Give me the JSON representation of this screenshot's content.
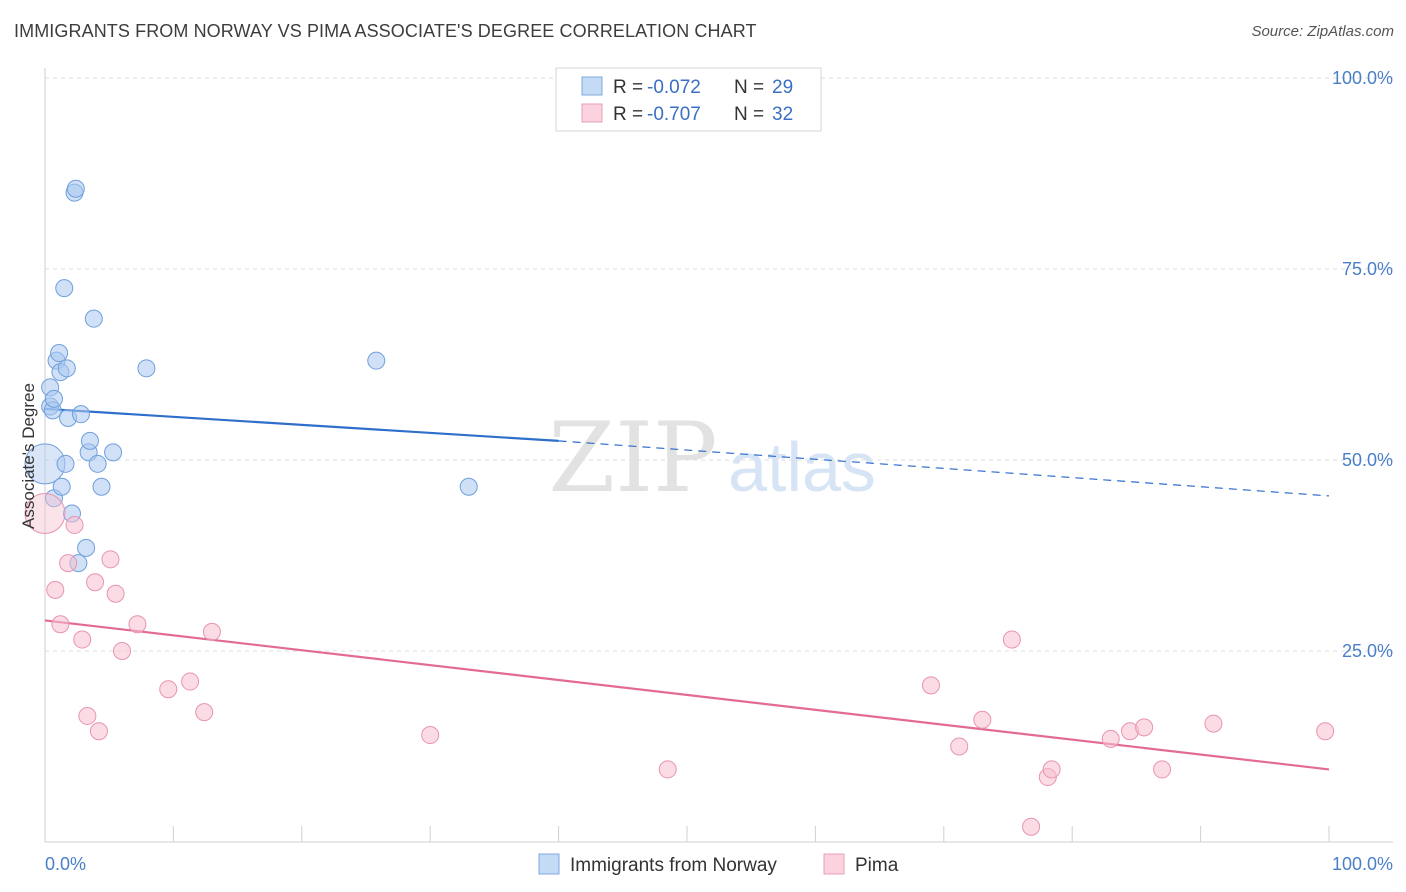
{
  "header": {
    "title": "IMMIGRANTS FROM NORWAY VS PIMA ASSOCIATE'S DEGREE CORRELATION CHART",
    "source": "Source: ZipAtlas.com"
  },
  "watermark": {
    "zip": "ZIP",
    "atlas": "atlas"
  },
  "colors": {
    "blue_fill": "#aac8f0",
    "blue_stroke": "#6f9fdc",
    "blue_line": "#2f6fcc",
    "pink_fill": "#f7c0d0",
    "pink_stroke": "#e894b0",
    "pink_line": "#e26a95",
    "grid": "#dedede",
    "tick_text": "#4a7fc8"
  },
  "legend": {
    "rows": [
      {
        "r_label": "R =",
        "r_value": "-0.072",
        "n_label": "N =",
        "n_value": "29",
        "color": "blue"
      },
      {
        "r_label": "R =",
        "r_value": "-0.707",
        "n_label": "N =",
        "n_value": "32",
        "color": "pink"
      }
    ]
  },
  "bottom_legend": [
    "Immigrants from Norway",
    "Pima"
  ],
  "chart_data": {
    "type": "scatter",
    "title": "IMMIGRANTS FROM NORWAY VS PIMA ASSOCIATE'S DEGREE CORRELATION CHART",
    "xlabel": "",
    "ylabel": "Associate's Degree",
    "xlim": [
      0,
      100
    ],
    "ylim": [
      0,
      100
    ],
    "x_tick_labels": [
      "0.0%",
      "100.0%"
    ],
    "y_ticks": [
      25,
      50,
      75,
      100
    ],
    "y_tick_labels": [
      "25.0%",
      "50.0%",
      "75.0%",
      "100.0%"
    ],
    "grid": true,
    "legend_position": "top-center",
    "series": [
      {
        "name": "Immigrants from Norway",
        "color": "blue",
        "r": -0.072,
        "n": 29,
        "trend": {
          "x_start": 0,
          "y_start": 56.7,
          "x_solid_end": 40,
          "y_solid_end": 52.5,
          "x_end": 100,
          "y_end": 45.3
        },
        "points": [
          [
            0.0,
            49.5
          ],
          [
            0.4,
            59.5
          ],
          [
            0.4,
            57.0
          ],
          [
            0.6,
            56.5
          ],
          [
            0.7,
            58.0
          ],
          [
            0.7,
            45.0
          ],
          [
            0.9,
            63.0
          ],
          [
            1.1,
            64.0
          ],
          [
            1.2,
            61.5
          ],
          [
            1.3,
            46.5
          ],
          [
            1.5,
            72.5
          ],
          [
            1.6,
            49.5
          ],
          [
            1.7,
            62.0
          ],
          [
            1.8,
            55.5
          ],
          [
            2.1,
            43.0
          ],
          [
            2.3,
            85.0
          ],
          [
            2.4,
            85.5
          ],
          [
            2.6,
            36.5
          ],
          [
            2.8,
            56.0
          ],
          [
            3.2,
            38.5
          ],
          [
            3.4,
            51.0
          ],
          [
            3.5,
            52.5
          ],
          [
            3.8,
            68.5
          ],
          [
            4.1,
            49.5
          ],
          [
            4.4,
            46.5
          ],
          [
            5.3,
            51.0
          ],
          [
            7.9,
            62.0
          ],
          [
            25.8,
            63.0
          ],
          [
            33.0,
            46.5
          ]
        ]
      },
      {
        "name": "Pima",
        "color": "pink",
        "r": -0.707,
        "n": 32,
        "trend": {
          "x_start": 0,
          "y_start": 29.0,
          "x_end": 100,
          "y_end": 9.5
        },
        "points": [
          [
            0.0,
            43.0
          ],
          [
            0.8,
            33.0
          ],
          [
            1.2,
            28.5
          ],
          [
            1.8,
            36.5
          ],
          [
            2.3,
            41.5
          ],
          [
            2.9,
            26.5
          ],
          [
            3.3,
            16.5
          ],
          [
            3.9,
            34.0
          ],
          [
            4.2,
            14.5
          ],
          [
            5.1,
            37.0
          ],
          [
            5.5,
            32.5
          ],
          [
            6.0,
            25.0
          ],
          [
            7.2,
            28.5
          ],
          [
            9.6,
            20.0
          ],
          [
            11.3,
            21.0
          ],
          [
            12.4,
            17.0
          ],
          [
            13.0,
            27.5
          ],
          [
            30.0,
            14.0
          ],
          [
            48.5,
            9.5
          ],
          [
            69.0,
            20.5
          ],
          [
            71.2,
            12.5
          ],
          [
            73.0,
            16.0
          ],
          [
            75.3,
            26.5
          ],
          [
            76.8,
            2.0
          ],
          [
            78.1,
            8.5
          ],
          [
            78.4,
            9.5
          ],
          [
            83.0,
            13.5
          ],
          [
            84.5,
            14.5
          ],
          [
            85.6,
            15.0
          ],
          [
            87.0,
            9.5
          ],
          [
            91.0,
            15.5
          ],
          [
            99.7,
            14.5
          ]
        ]
      }
    ]
  }
}
